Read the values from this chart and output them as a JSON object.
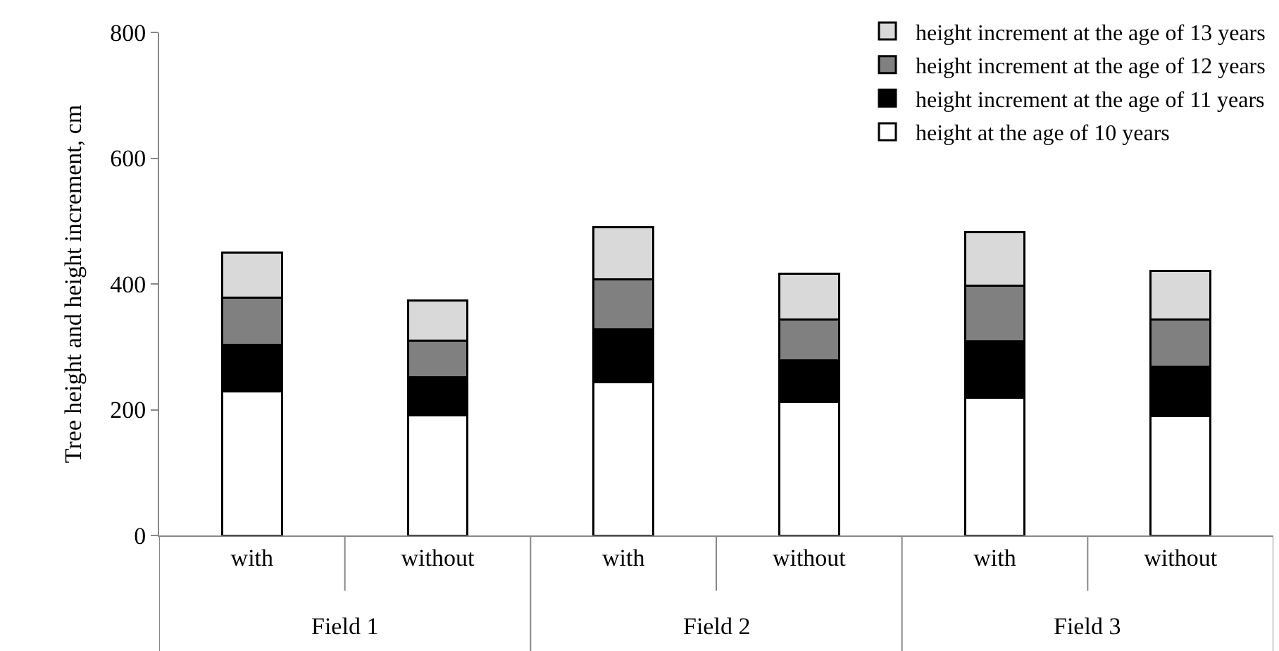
{
  "chart_data": {
    "type": "bar",
    "stacked": true,
    "ylabel": "Tree height and height increment, cm",
    "categories": [
      "with",
      "without",
      "with",
      "without",
      "with",
      "without"
    ],
    "annotations": [
      "Field 1",
      "Field 2",
      "Field 3"
    ],
    "series": [
      {
        "name": "height at the age of 10 years",
        "color": "#ffffff",
        "values": [
          229,
          191,
          244,
          212,
          219,
          190
        ]
      },
      {
        "name": "height increment at the age of 11 years",
        "color": "#000000",
        "values": [
          74,
          61,
          84,
          67,
          90,
          78
        ]
      },
      {
        "name": "height increment at the age of 12 years",
        "color": "#808080",
        "values": [
          75,
          58,
          79,
          64,
          88,
          75
        ]
      },
      {
        "name": "height increment at the age of 13 years",
        "color": "#d9d9d9",
        "values": [
          72,
          64,
          83,
          73,
          85,
          78
        ]
      }
    ],
    "ylim": [
      0,
      800
    ],
    "yticks": [
      0,
      200,
      400,
      600,
      800
    ],
    "legend": "top right"
  }
}
